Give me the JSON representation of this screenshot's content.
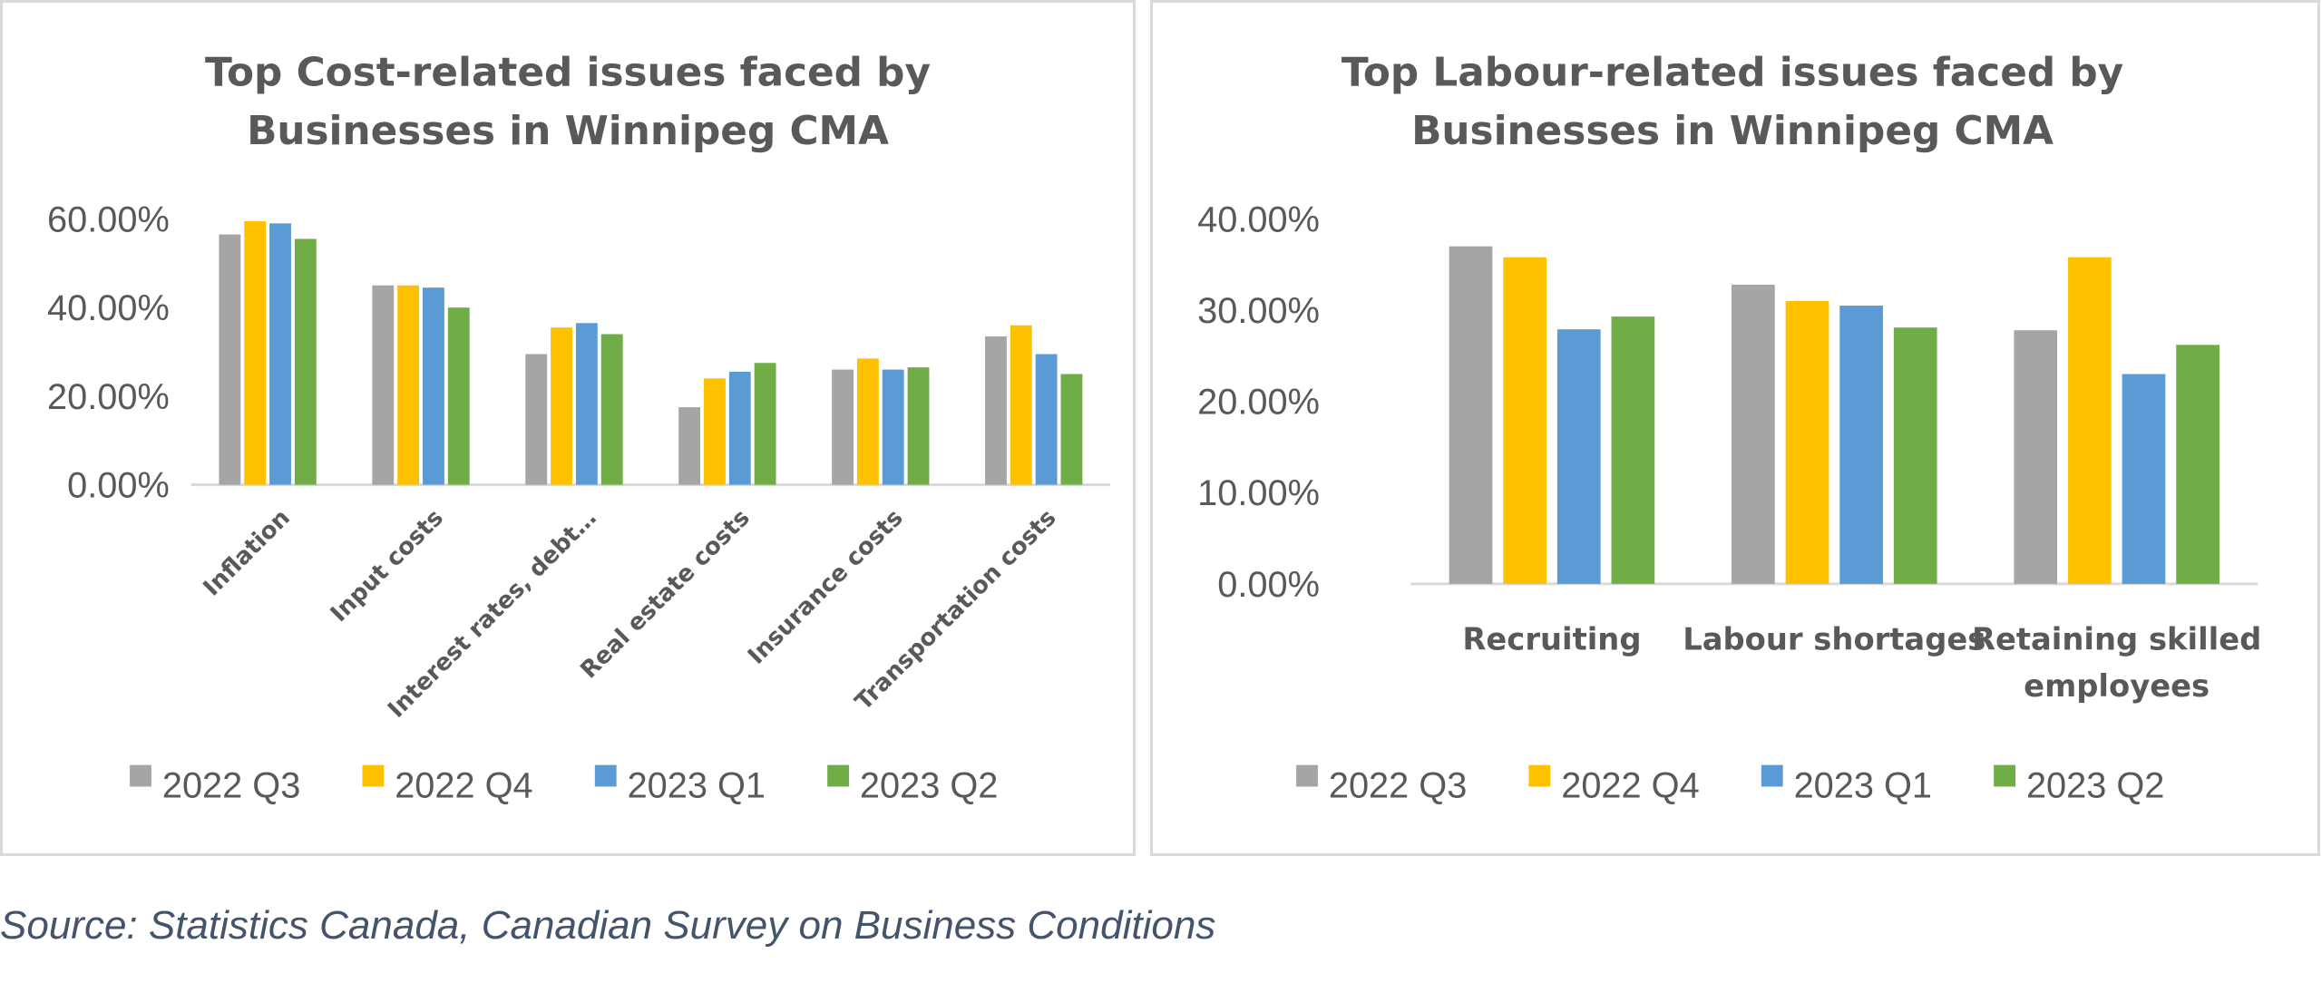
{
  "chart_data": [
    {
      "type": "bar",
      "title": "Top Cost-related issues faced by Businesses in Winnipeg CMA",
      "title_lines": [
        "Top Cost-related issues faced by",
        "Businesses in Winnipeg CMA"
      ],
      "categories": [
        "Inflation",
        "Input costs",
        "Interest rates, debt…",
        "Real estate costs",
        "Insurance costs",
        "Transportation costs"
      ],
      "series": [
        {
          "name": "2022 Q3",
          "color": "#a5a5a5",
          "values": [
            56.5,
            45.0,
            29.5,
            17.5,
            26.0,
            33.5
          ]
        },
        {
          "name": "2022 Q4",
          "color": "#ffc000",
          "values": [
            59.5,
            45.0,
            35.5,
            24.0,
            28.5,
            36.0
          ]
        },
        {
          "name": "2023 Q1",
          "color": "#5b9bd5",
          "values": [
            59.0,
            44.5,
            36.5,
            25.5,
            26.0,
            29.5
          ]
        },
        {
          "name": "2023 Q2",
          "color": "#70ad47",
          "values": [
            55.5,
            40.0,
            34.0,
            27.5,
            26.5,
            25.0
          ]
        }
      ],
      "y_ticks": [
        "0.00%",
        "20.00%",
        "40.00%",
        "60.00%"
      ],
      "ylim": [
        0,
        60
      ],
      "xlabel": "",
      "ylabel": "",
      "grid": false,
      "legend_position": "bottom"
    },
    {
      "type": "bar",
      "title": "Top Labour-related issues faced by Businesses in Winnipeg CMA",
      "title_lines": [
        "Top Labour-related issues faced by",
        "Businesses in Winnipeg CMA"
      ],
      "categories": [
        "Recruiting",
        "Labour shortages",
        "Retaining skilled employees"
      ],
      "category_lines": [
        [
          "Recruiting"
        ],
        [
          "Labour shortages"
        ],
        [
          "Retaining skilled",
          "employees"
        ]
      ],
      "series": [
        {
          "name": "2022 Q3",
          "color": "#a5a5a5",
          "values": [
            37.0,
            32.8,
            27.8
          ]
        },
        {
          "name": "2022 Q4",
          "color": "#ffc000",
          "values": [
            35.8,
            31.0,
            35.8
          ]
        },
        {
          "name": "2023 Q1",
          "color": "#5b9bd5",
          "values": [
            27.9,
            30.5,
            23.0
          ]
        },
        {
          "name": "2023 Q2",
          "color": "#70ad47",
          "values": [
            29.3,
            28.1,
            26.2
          ]
        }
      ],
      "y_ticks": [
        "0.00%",
        "10.00%",
        "20.00%",
        "30.00%",
        "40.00%"
      ],
      "ylim": [
        0,
        40
      ],
      "xlabel": "",
      "ylabel": "",
      "grid": false,
      "legend_position": "bottom"
    }
  ],
  "source": "Source: Statistics Canada, Canadian Survey on Business Conditions"
}
